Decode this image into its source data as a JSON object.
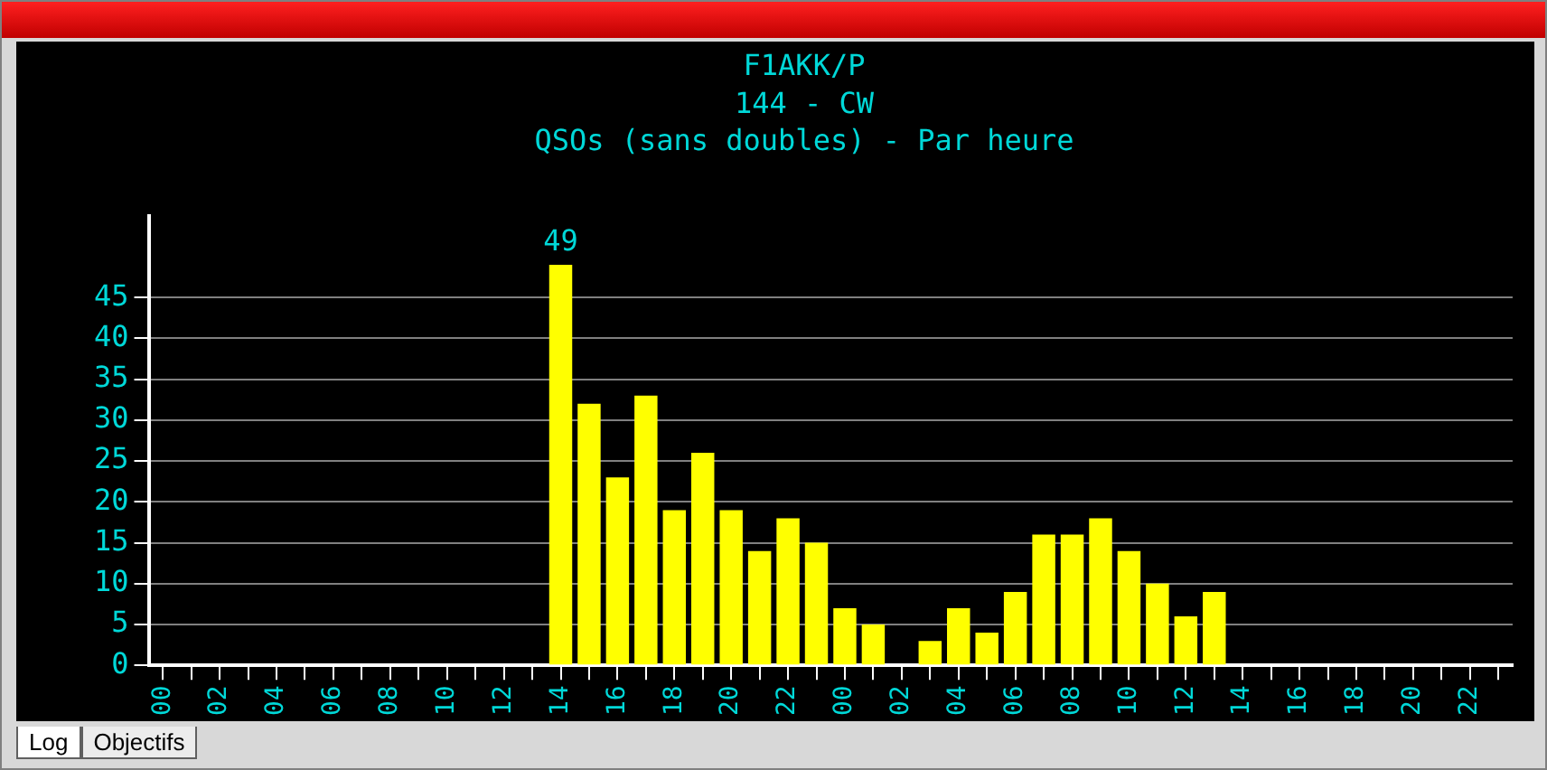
{
  "chart_data": {
    "type": "bar",
    "title": "F1AKK/P",
    "subtitle": "144 - CW",
    "annotations": [
      "QSOs (sans doubles) - Par heure",
      "Log",
      "Objectifs"
    ],
    "categories": [
      "00",
      null,
      "02",
      null,
      "04",
      null,
      "06",
      null,
      "08",
      null,
      "10",
      null,
      "12",
      null,
      "14",
      null,
      "16",
      null,
      "18",
      null,
      "20",
      null,
      "22",
      null,
      "00",
      null,
      "02",
      null,
      "04",
      null,
      "06",
      null,
      "08",
      null,
      "10",
      null,
      "12",
      null,
      "14",
      null,
      "16",
      null,
      "18",
      null,
      "20",
      null,
      "22",
      null
    ],
    "values": [
      0,
      0,
      0,
      0,
      0,
      0,
      0,
      0,
      0,
      0,
      0,
      0,
      0,
      0,
      49,
      32,
      23,
      33,
      19,
      26,
      19,
      14,
      18,
      15,
      7,
      5,
      0,
      3,
      7,
      4,
      9,
      16,
      16,
      18,
      14,
      10,
      6,
      9,
      0,
      0,
      0,
      0,
      0,
      0,
      0,
      0,
      0,
      0
    ],
    "value_labels": [
      null,
      null,
      null,
      null,
      null,
      null,
      null,
      null,
      null,
      null,
      null,
      null,
      null,
      null,
      "49",
      null,
      null,
      null,
      null,
      null,
      null,
      null,
      null,
      null,
      null,
      null,
      null,
      null,
      null,
      null,
      null,
      null,
      null,
      null,
      null,
      null,
      null,
      null,
      null,
      null,
      null,
      null,
      null,
      null,
      null,
      null,
      null,
      null
    ],
    "color": "#ffff00",
    "ylim": [
      0,
      55
    ],
    "yticks": [
      0,
      5,
      10,
      15,
      20,
      25,
      30,
      35,
      40,
      45
    ],
    "grid": "y",
    "legend": false
  }
}
